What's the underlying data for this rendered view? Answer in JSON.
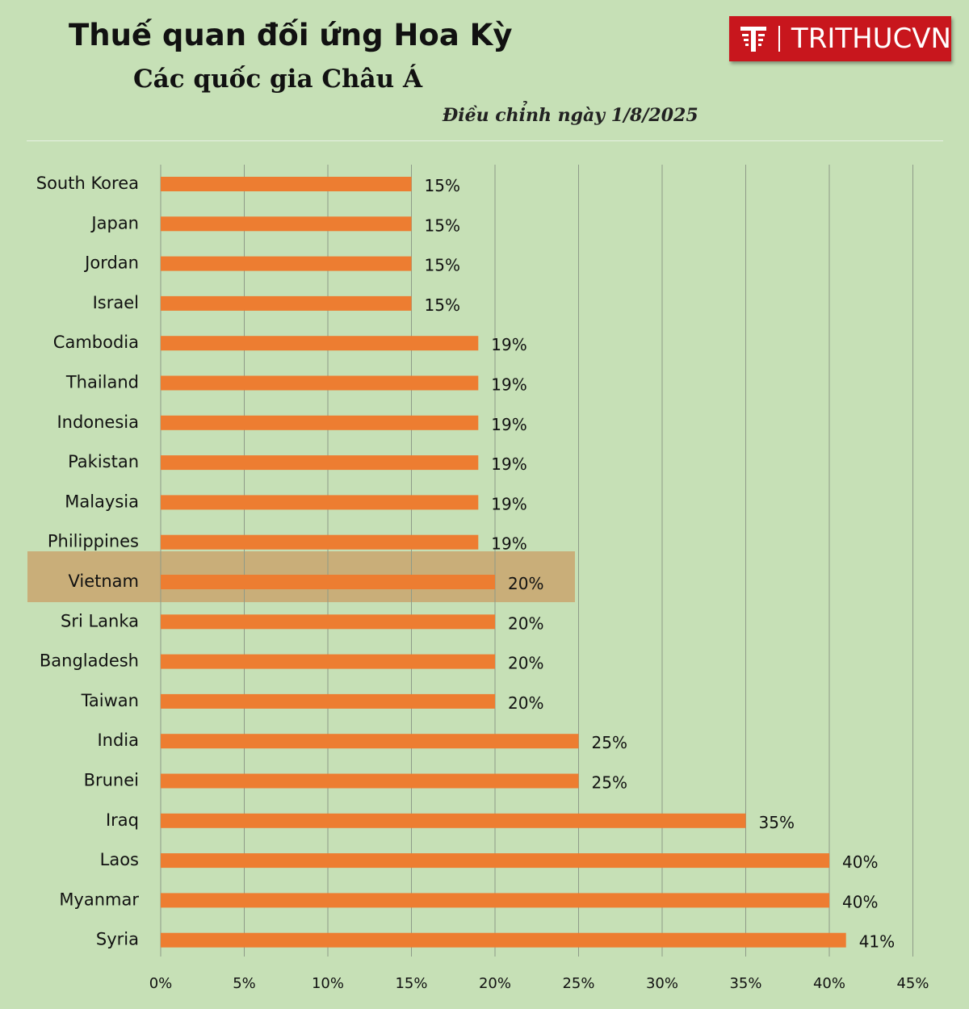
{
  "header": {
    "title": "Thuế quan đối ứng Hoa Kỳ",
    "subtitle": "Các quốc gia Châu Á",
    "note": "Điều chỉnh ngày 1/8/2025"
  },
  "logo": {
    "text": "TRITHUCVN",
    "icon": "trithucvn-logo-icon",
    "color": "#c8161d"
  },
  "colors": {
    "bar": "#ed7d31",
    "highlight": "#c9a46e",
    "background": "#c6e0b6",
    "grid": "#8e9a88"
  },
  "chart_data": {
    "type": "bar",
    "orientation": "horizontal",
    "categories": [
      "South Korea",
      "Japan",
      "Jordan",
      "Israel",
      "Cambodia",
      "Thailand",
      "Indonesia",
      "Pakistan",
      "Malaysia",
      "Philippines",
      "Vietnam",
      "Sri Lanka",
      "Bangladesh",
      "Taiwan",
      "India",
      "Brunei",
      "Iraq",
      "Laos",
      "Myanmar",
      "Syria"
    ],
    "values": [
      15,
      15,
      15,
      15,
      19,
      19,
      19,
      19,
      19,
      19,
      20,
      20,
      20,
      20,
      25,
      25,
      35,
      40,
      40,
      41
    ],
    "value_labels": [
      "15%",
      "15%",
      "15%",
      "15%",
      "19%",
      "19%",
      "19%",
      "19%",
      "19%",
      "19%",
      "20%",
      "20%",
      "20%",
      "20%",
      "25%",
      "25%",
      "35%",
      "40%",
      "40%",
      "41%"
    ],
    "x_ticks": [
      "0%",
      "5%",
      "10%",
      "15%",
      "20%",
      "25%",
      "30%",
      "35%",
      "40%",
      "45%"
    ],
    "xlim": [
      0,
      45
    ],
    "highlighted_category": "Vietnam",
    "grid": true,
    "legend": "none"
  }
}
